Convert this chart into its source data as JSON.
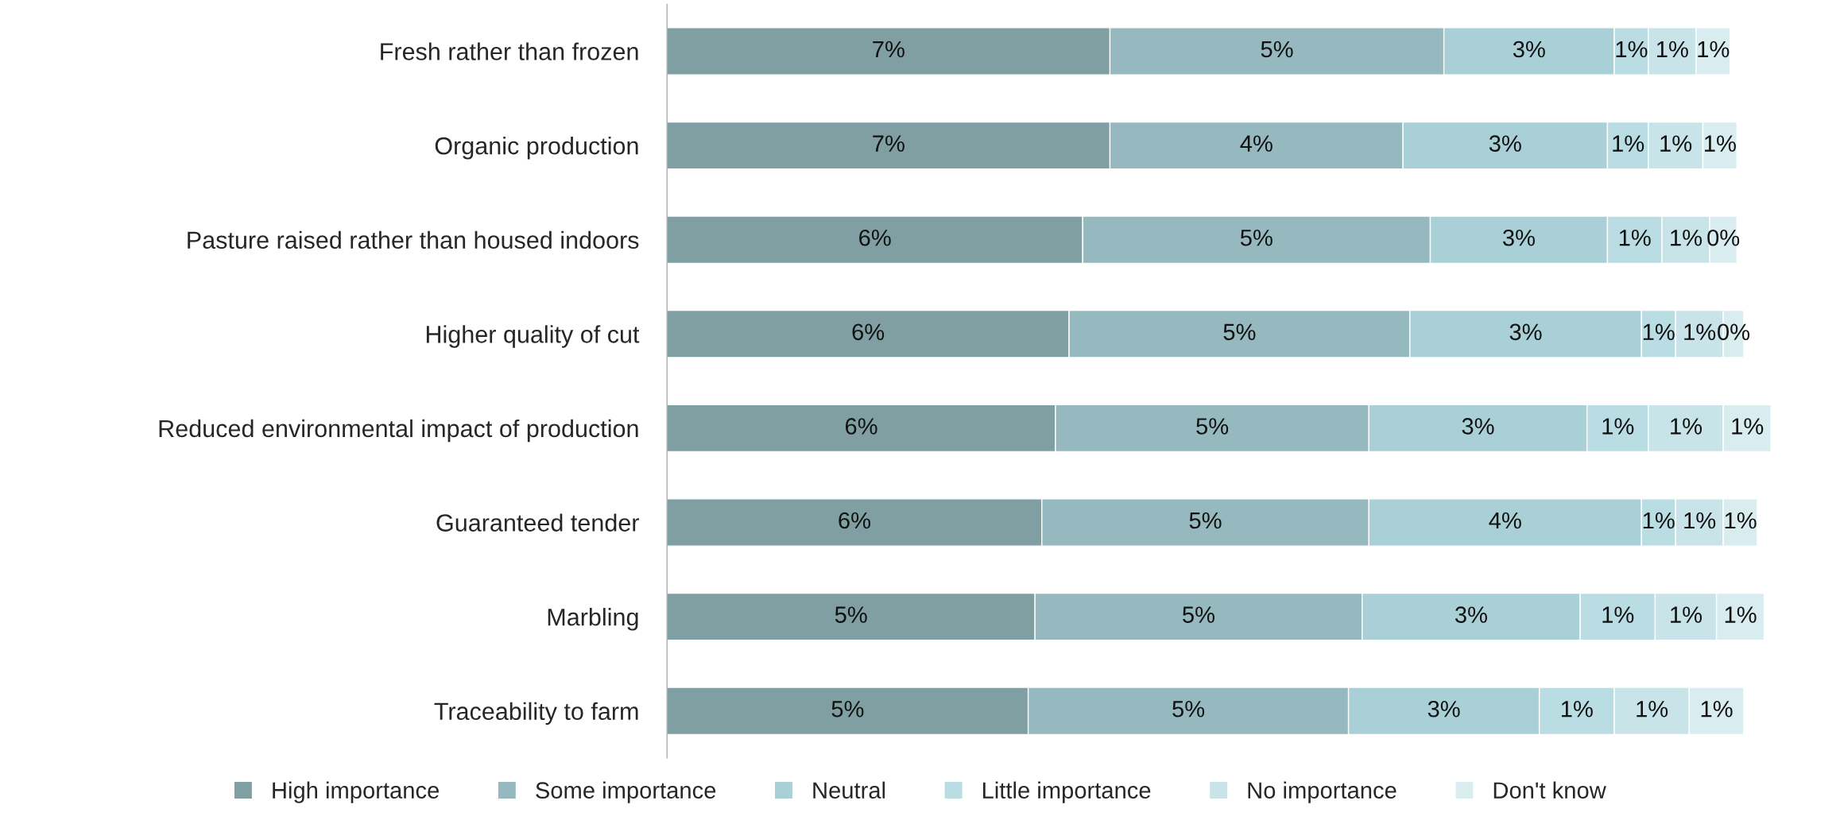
{
  "chart_data": {
    "type": "bar",
    "orientation": "horizontal",
    "stacked": true,
    "tick_labels": "y",
    "legend": "bottom",
    "categories": [
      "Fresh rather than frozen",
      "Organic production",
      "Pasture raised rather than housed indoors",
      "Higher quality of cut",
      "Reduced environmental impact of production",
      "Guaranteed tender",
      "Marbling",
      "Traceability to farm"
    ],
    "series": [
      {
        "name": "High importance",
        "color": "#7f9fa3",
        "values": [
          6.5,
          6.5,
          6.1,
          5.9,
          5.7,
          5.5,
          5.4,
          5.3
        ],
        "value_labels": [
          "7%",
          "7%",
          "6%",
          "6%",
          "6%",
          "6%",
          "5%",
          "5%"
        ]
      },
      {
        "name": "Some importance",
        "color": "#96b9c0",
        "values": [
          4.9,
          4.3,
          5.1,
          5.0,
          4.6,
          4.8,
          4.8,
          4.7
        ],
        "value_labels": [
          "5%",
          "4%",
          "5%",
          "5%",
          "5%",
          "5%",
          "5%",
          "5%"
        ]
      },
      {
        "name": "Neutral",
        "color": "#a9d0d7",
        "values": [
          2.5,
          3.0,
          2.6,
          3.4,
          3.2,
          4.0,
          3.2,
          2.8
        ],
        "value_labels": [
          "3%",
          "3%",
          "3%",
          "3%",
          "3%",
          "4%",
          "3%",
          "3%"
        ]
      },
      {
        "name": "Little importance",
        "color": "#b9dde3",
        "values": [
          0.5,
          0.6,
          0.8,
          0.5,
          0.9,
          0.5,
          1.1,
          1.1
        ],
        "value_labels": [
          "1%",
          "1%",
          "1%",
          "1%",
          "1%",
          "1%",
          "1%",
          "1%"
        ]
      },
      {
        "name": "No importance",
        "color": "#c8e4e9",
        "values": [
          0.7,
          0.8,
          0.7,
          0.7,
          1.1,
          0.7,
          0.9,
          1.1
        ],
        "value_labels": [
          "1%",
          "1%",
          "1%",
          "1%",
          "1%",
          "1%",
          "1%",
          "1%"
        ]
      },
      {
        "name": "Don't know",
        "color": "#d9edf0",
        "values": [
          0.5,
          0.5,
          0.4,
          0.3,
          0.7,
          0.5,
          0.7,
          0.8
        ],
        "value_labels": [
          "1%",
          "1%",
          "0%",
          "0%",
          "1%",
          "1%",
          "1%",
          "1%"
        ]
      }
    ]
  }
}
